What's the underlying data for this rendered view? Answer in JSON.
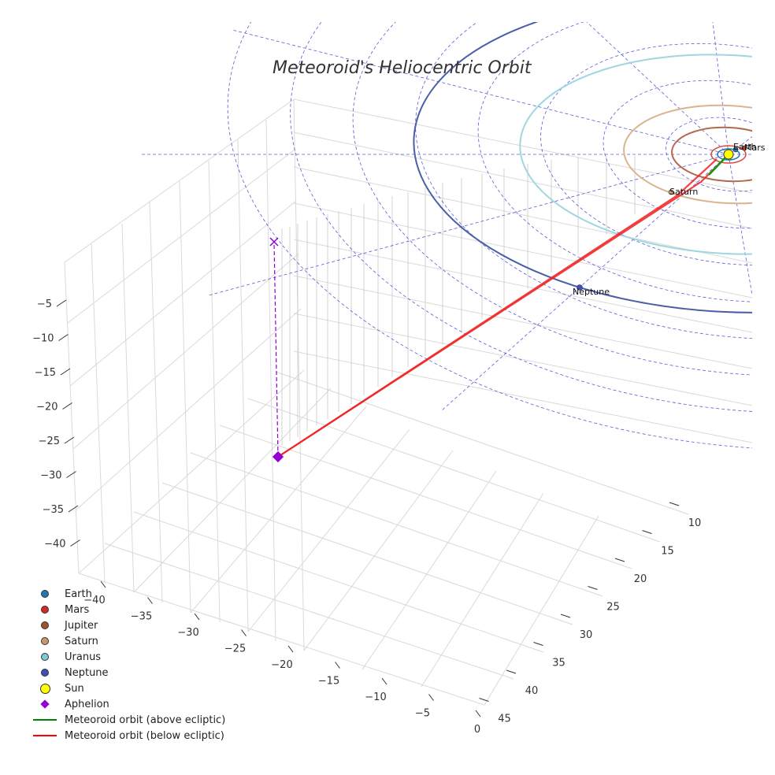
{
  "chart_data": {
    "type": "3d-line",
    "title": "Meteoroid's Heliocentric Orbit",
    "x_ticks": [
      "−40",
      "−35",
      "−30",
      "−25",
      "−20",
      "−15",
      "−10",
      "−5",
      "0"
    ],
    "y_ticks": [
      "10",
      "15",
      "20",
      "25",
      "30",
      "35",
      "40",
      "45"
    ],
    "z_ticks": [
      "−5",
      "−10",
      "−15",
      "−20",
      "−25",
      "−30",
      "−35",
      "−40"
    ],
    "planet_labels": [
      "Earth",
      "Mars",
      "Saturn",
      "Neptune"
    ],
    "aphelion_label": "Aphelion",
    "legend": [
      {
        "label": "Earth",
        "marker": "dot",
        "color": "#1f77b4"
      },
      {
        "label": "Mars",
        "marker": "dot",
        "color": "#d62728"
      },
      {
        "label": "Jupiter",
        "marker": "dot",
        "color": "#a0522d"
      },
      {
        "label": "Saturn",
        "marker": "dot",
        "color": "#c8996a"
      },
      {
        "label": "Uranus",
        "marker": "dot",
        "color": "#7ec8d8"
      },
      {
        "label": "Neptune",
        "marker": "dot",
        "color": "#3f51b5"
      },
      {
        "label": "Sun",
        "marker": "sun",
        "color": "#ffff00"
      },
      {
        "label": "Aphelion",
        "marker": "diamond",
        "color": "#9400d3"
      },
      {
        "label": "Meteoroid orbit (above ecliptic)",
        "marker": "line",
        "color": "#008000"
      },
      {
        "label": "Meteoroid orbit (below ecliptic)",
        "marker": "line",
        "color": "#ff0000"
      }
    ]
  }
}
